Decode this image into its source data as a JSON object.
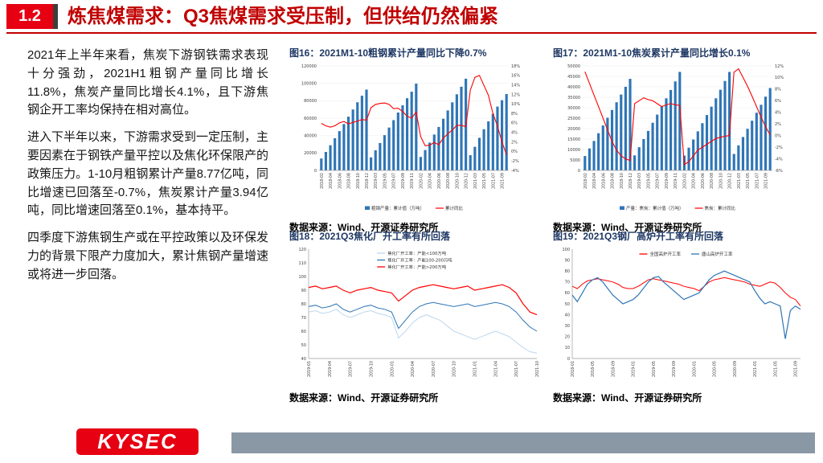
{
  "header": {
    "section_number": "1.2",
    "title": "炼焦煤需求：Q3焦煤需求受压制，但供给仍然偏紧"
  },
  "left_column": {
    "paragraphs": [
      "2021年上半年来看，焦炭下游钢铁需求表现十分强劲，2021H1粗钢产量同比增长11.8%，焦炭产量同比增长4.1%，且下游焦钢企开工率均保持在相对高位。",
      "进入下半年以来，下游需求受到一定压制，主要因素在于钢铁产量平控以及焦化环保限产的政策压力。1-10月粗钢累计产量8.77亿吨，同比增速已回落至-0.7%，焦炭累计产量3.94亿吨，同比增速回落至0.1%，基本持平。",
      "四季度下游焦钢生产或在平控政策以及环保发力的背景下限产力度加大，累计焦钢产量增速或将进一步回落。"
    ]
  },
  "footer": {
    "logo_text": "KYSEC"
  },
  "colors": {
    "brand_red": "#E60012",
    "title_red": "#C00000",
    "bar_blue": "#2E75B6",
    "line_red": "#FF0000",
    "light_blue": "#BDD7EE",
    "footer_gray": "#8A98A6"
  },
  "chart_data": [
    {
      "type": "bar",
      "title": "图16：2021M1-10粗钢累计产量同比下降0.7%",
      "source": "数据来源：Wind、开源证券研究所",
      "categories": [
        "2018-02",
        "2018-03",
        "2018-04",
        "2018-05",
        "2018-06",
        "2018-07",
        "2018-08",
        "2018-09",
        "2018-10",
        "2018-11",
        "2018-12",
        "2019-02",
        "2019-03",
        "2019-04",
        "2019-05",
        "2019-06",
        "2019-07",
        "2019-08",
        "2019-09",
        "2019-10",
        "2019-11",
        "2019-12",
        "2020-02",
        "2020-03",
        "2020-04",
        "2020-05",
        "2020-06",
        "2020-07",
        "2020-08",
        "2020-09",
        "2020-10",
        "2020-11",
        "2020-12",
        "2021-02",
        "2021-03",
        "2021-04",
        "2021-05",
        "2021-06",
        "2021-07",
        "2021-08",
        "2021-09",
        "2021-10"
      ],
      "bar_series": {
        "name": "粗钢产量：累计值（万吨）",
        "color": "#2E75B6",
        "values": [
          13682,
          21215,
          28897,
          36986,
          45116,
          53285,
          61740,
          69942,
          78246,
          85737,
          92826,
          14958,
          23107,
          31496,
          40488,
          49217,
          57706,
          66487,
          74782,
          82922,
          90418,
          99634,
          15470,
          23445,
          31946,
          41175,
          49901,
          59317,
          68889,
          78159,
          87393,
          96116,
          105300,
          17499,
          27104,
          37456,
          47310,
          56333,
          64933,
          73302,
          80589,
          87705
        ]
      },
      "line_series": {
        "name": "累计同比",
        "color": "#FF0000",
        "values": [
          5.9,
          5.4,
          5.1,
          5.4,
          6.0,
          6.3,
          5.8,
          6.1,
          6.4,
          6.7,
          6.6,
          9.2,
          9.9,
          10.1,
          10.2,
          9.9,
          9.0,
          9.1,
          8.4,
          7.4,
          7.0,
          8.3,
          3.1,
          1.2,
          1.3,
          1.9,
          1.4,
          2.8,
          3.7,
          4.5,
          5.5,
          5.5,
          5.2,
          12.9,
          15.6,
          16.0,
          13.9,
          11.8,
          8.0,
          5.3,
          2.0,
          -0.7
        ]
      },
      "left_axis": {
        "min": 0,
        "max": 120000,
        "step": 20000
      },
      "right_axis": {
        "min": -4,
        "max": 18,
        "step": 2,
        "suffix": "%"
      },
      "x_label_every": 2
    },
    {
      "type": "bar",
      "title": "图17：2021M1-10焦炭累计产量同比增长0.1%",
      "source": "数据来源：Wind、开源证券研究所",
      "categories": [
        "2018-02",
        "2018-03",
        "2018-04",
        "2018-05",
        "2018-06",
        "2018-07",
        "2018-08",
        "2018-09",
        "2018-10",
        "2018-11",
        "2018-12",
        "2019-02",
        "2019-03",
        "2019-04",
        "2019-05",
        "2019-06",
        "2019-07",
        "2019-08",
        "2019-09",
        "2019-10",
        "2019-11",
        "2019-12",
        "2020-02",
        "2020-03",
        "2020-04",
        "2020-05",
        "2020-06",
        "2020-07",
        "2020-08",
        "2020-09",
        "2020-10",
        "2020-11",
        "2020-12",
        "2021-02",
        "2021-03",
        "2021-04",
        "2021-05",
        "2021-06",
        "2021-07",
        "2021-08",
        "2021-09",
        "2021-10"
      ],
      "bar_series": {
        "name": "产量：焦炭：累计值（万吨）",
        "color": "#2E75B6",
        "values": [
          6900,
          10500,
          14100,
          17800,
          21500,
          25200,
          28900,
          32600,
          36300,
          40000,
          43820,
          7200,
          11100,
          15000,
          18900,
          22800,
          26700,
          30600,
          34500,
          38500,
          42600,
          47126,
          7100,
          10900,
          14800,
          18700,
          22600,
          26500,
          30500,
          34500,
          38600,
          42800,
          47116,
          7870,
          11980,
          15980,
          19900,
          23800,
          27600,
          31400,
          35300,
          39405
        ]
      },
      "line_series": {
        "name": "焦炭：累计同比",
        "color": "#FF0000",
        "values": [
          11.0,
          9.0,
          7.0,
          5.0,
          3.0,
          1.0,
          -1.0,
          -2.5,
          -3.5,
          -4.0,
          -4.3,
          5.5,
          6.0,
          6.5,
          6.2,
          6.0,
          5.5,
          5.0,
          5.3,
          5.5,
          5.3,
          5.2,
          -5.0,
          -4.5,
          -3.5,
          -2.5,
          -2.0,
          -1.5,
          -1.0,
          -0.5,
          -0.3,
          -0.1,
          0.0,
          10.9,
          11.5,
          10.0,
          8.5,
          6.8,
          5.0,
          3.2,
          1.5,
          0.1
        ]
      },
      "left_axis": {
        "min": 0,
        "max": 50000,
        "step": 5000
      },
      "right_axis": {
        "min": -6,
        "max": 12,
        "step": 2,
        "suffix": "%"
      },
      "x_label_every": 2
    },
    {
      "type": "line",
      "title": "图18：2021Q3焦化厂开工率有所回落",
      "source": "数据来源：Wind、开源证券研究所",
      "categories": [
        "2019-01",
        "2019-02",
        "2019-03",
        "2019-04",
        "2019-05",
        "2019-06",
        "2019-07",
        "2019-08",
        "2019-09",
        "2019-10",
        "2019-11",
        "2019-12",
        "2020-01",
        "2020-02",
        "2020-03",
        "2020-04",
        "2020-05",
        "2020-06",
        "2020-07",
        "2020-08",
        "2020-09",
        "2020-10",
        "2020-11",
        "2020-12",
        "2021-01",
        "2021-02",
        "2021-03",
        "2021-04",
        "2021-05",
        "2021-06",
        "2021-07",
        "2021-08",
        "2021-09",
        "2021-10"
      ],
      "series": [
        {
          "name": "焦化厂开工率：产能<100万吨",
          "color": "#BDD7EE",
          "values": [
            74,
            75,
            73,
            74,
            76,
            72,
            70,
            72,
            74,
            75,
            73,
            72,
            70,
            55,
            60,
            66,
            70,
            72,
            70,
            68,
            64,
            60,
            58,
            56,
            54,
            56,
            58,
            60,
            58,
            56,
            52,
            48,
            45,
            44
          ]
        },
        {
          "name": "焦化厂开工率：产能100-200万吨",
          "color": "#2E75B6",
          "values": [
            78,
            79,
            77,
            78,
            80,
            76,
            74,
            76,
            78,
            79,
            77,
            76,
            74,
            62,
            68,
            74,
            78,
            80,
            81,
            80,
            79,
            78,
            79,
            80,
            78,
            79,
            80,
            81,
            80,
            78,
            74,
            68,
            63,
            60
          ]
        },
        {
          "name": "焦化厂开工率：产能>200万吨",
          "color": "#FF0000",
          "values": [
            92,
            93,
            91,
            92,
            93,
            90,
            88,
            90,
            91,
            92,
            90,
            89,
            88,
            82,
            86,
            90,
            92,
            93,
            94,
            93,
            92,
            91,
            92,
            93,
            90,
            91,
            92,
            93,
            94,
            92,
            88,
            80,
            74,
            72
          ]
        }
      ],
      "y_axis": {
        "min": 40,
        "max": 120,
        "step": 10
      },
      "x_label_every": 3,
      "legend_layout": "stack"
    },
    {
      "type": "line",
      "title": "图19：2021Q3钢厂高炉开工率有所回落",
      "source": "数据来源：Wind、开源证券研究所",
      "categories": [
        "2018-01",
        "2018-02",
        "2018-03",
        "2018-04",
        "2018-05",
        "2018-06",
        "2018-07",
        "2018-08",
        "2018-09",
        "2018-10",
        "2018-11",
        "2018-12",
        "2019-01",
        "2019-02",
        "2019-03",
        "2019-04",
        "2019-05",
        "2019-06",
        "2019-07",
        "2019-08",
        "2019-09",
        "2019-10",
        "2019-11",
        "2019-12",
        "2020-01",
        "2020-02",
        "2020-03",
        "2020-04",
        "2020-05",
        "2020-06",
        "2020-07",
        "2020-08",
        "2020-09",
        "2020-10",
        "2020-11",
        "2020-12",
        "2021-01",
        "2021-02",
        "2021-03",
        "2021-04",
        "2021-05",
        "2021-06",
        "2021-07",
        "2021-08",
        "2021-09",
        "2021-10"
      ],
      "series": [
        {
          "name": "全国高炉开工率",
          "color": "#FF0000",
          "values": [
            66,
            64,
            68,
            71,
            72,
            73,
            72,
            71,
            70,
            68,
            65,
            64,
            64,
            66,
            69,
            72,
            73,
            72,
            71,
            70,
            69,
            68,
            66,
            65,
            64,
            62,
            66,
            70,
            72,
            73,
            74,
            73,
            72,
            71,
            70,
            68,
            67,
            66,
            68,
            70,
            69,
            65,
            60,
            56,
            54,
            48
          ]
        },
        {
          "name": "唐山高炉开工率",
          "color": "#2E75B6",
          "values": [
            58,
            52,
            60,
            68,
            72,
            74,
            70,
            64,
            58,
            54,
            50,
            52,
            54,
            58,
            64,
            70,
            74,
            75,
            70,
            66,
            62,
            58,
            54,
            56,
            58,
            60,
            66,
            72,
            76,
            78,
            80,
            78,
            76,
            74,
            72,
            70,
            62,
            55,
            50,
            52,
            50,
            48,
            18,
            44,
            48,
            45
          ]
        }
      ],
      "y_axis": {
        "min": 0,
        "max": 100,
        "step": 10
      },
      "x_label_every": 4,
      "legend_layout": "row"
    }
  ]
}
